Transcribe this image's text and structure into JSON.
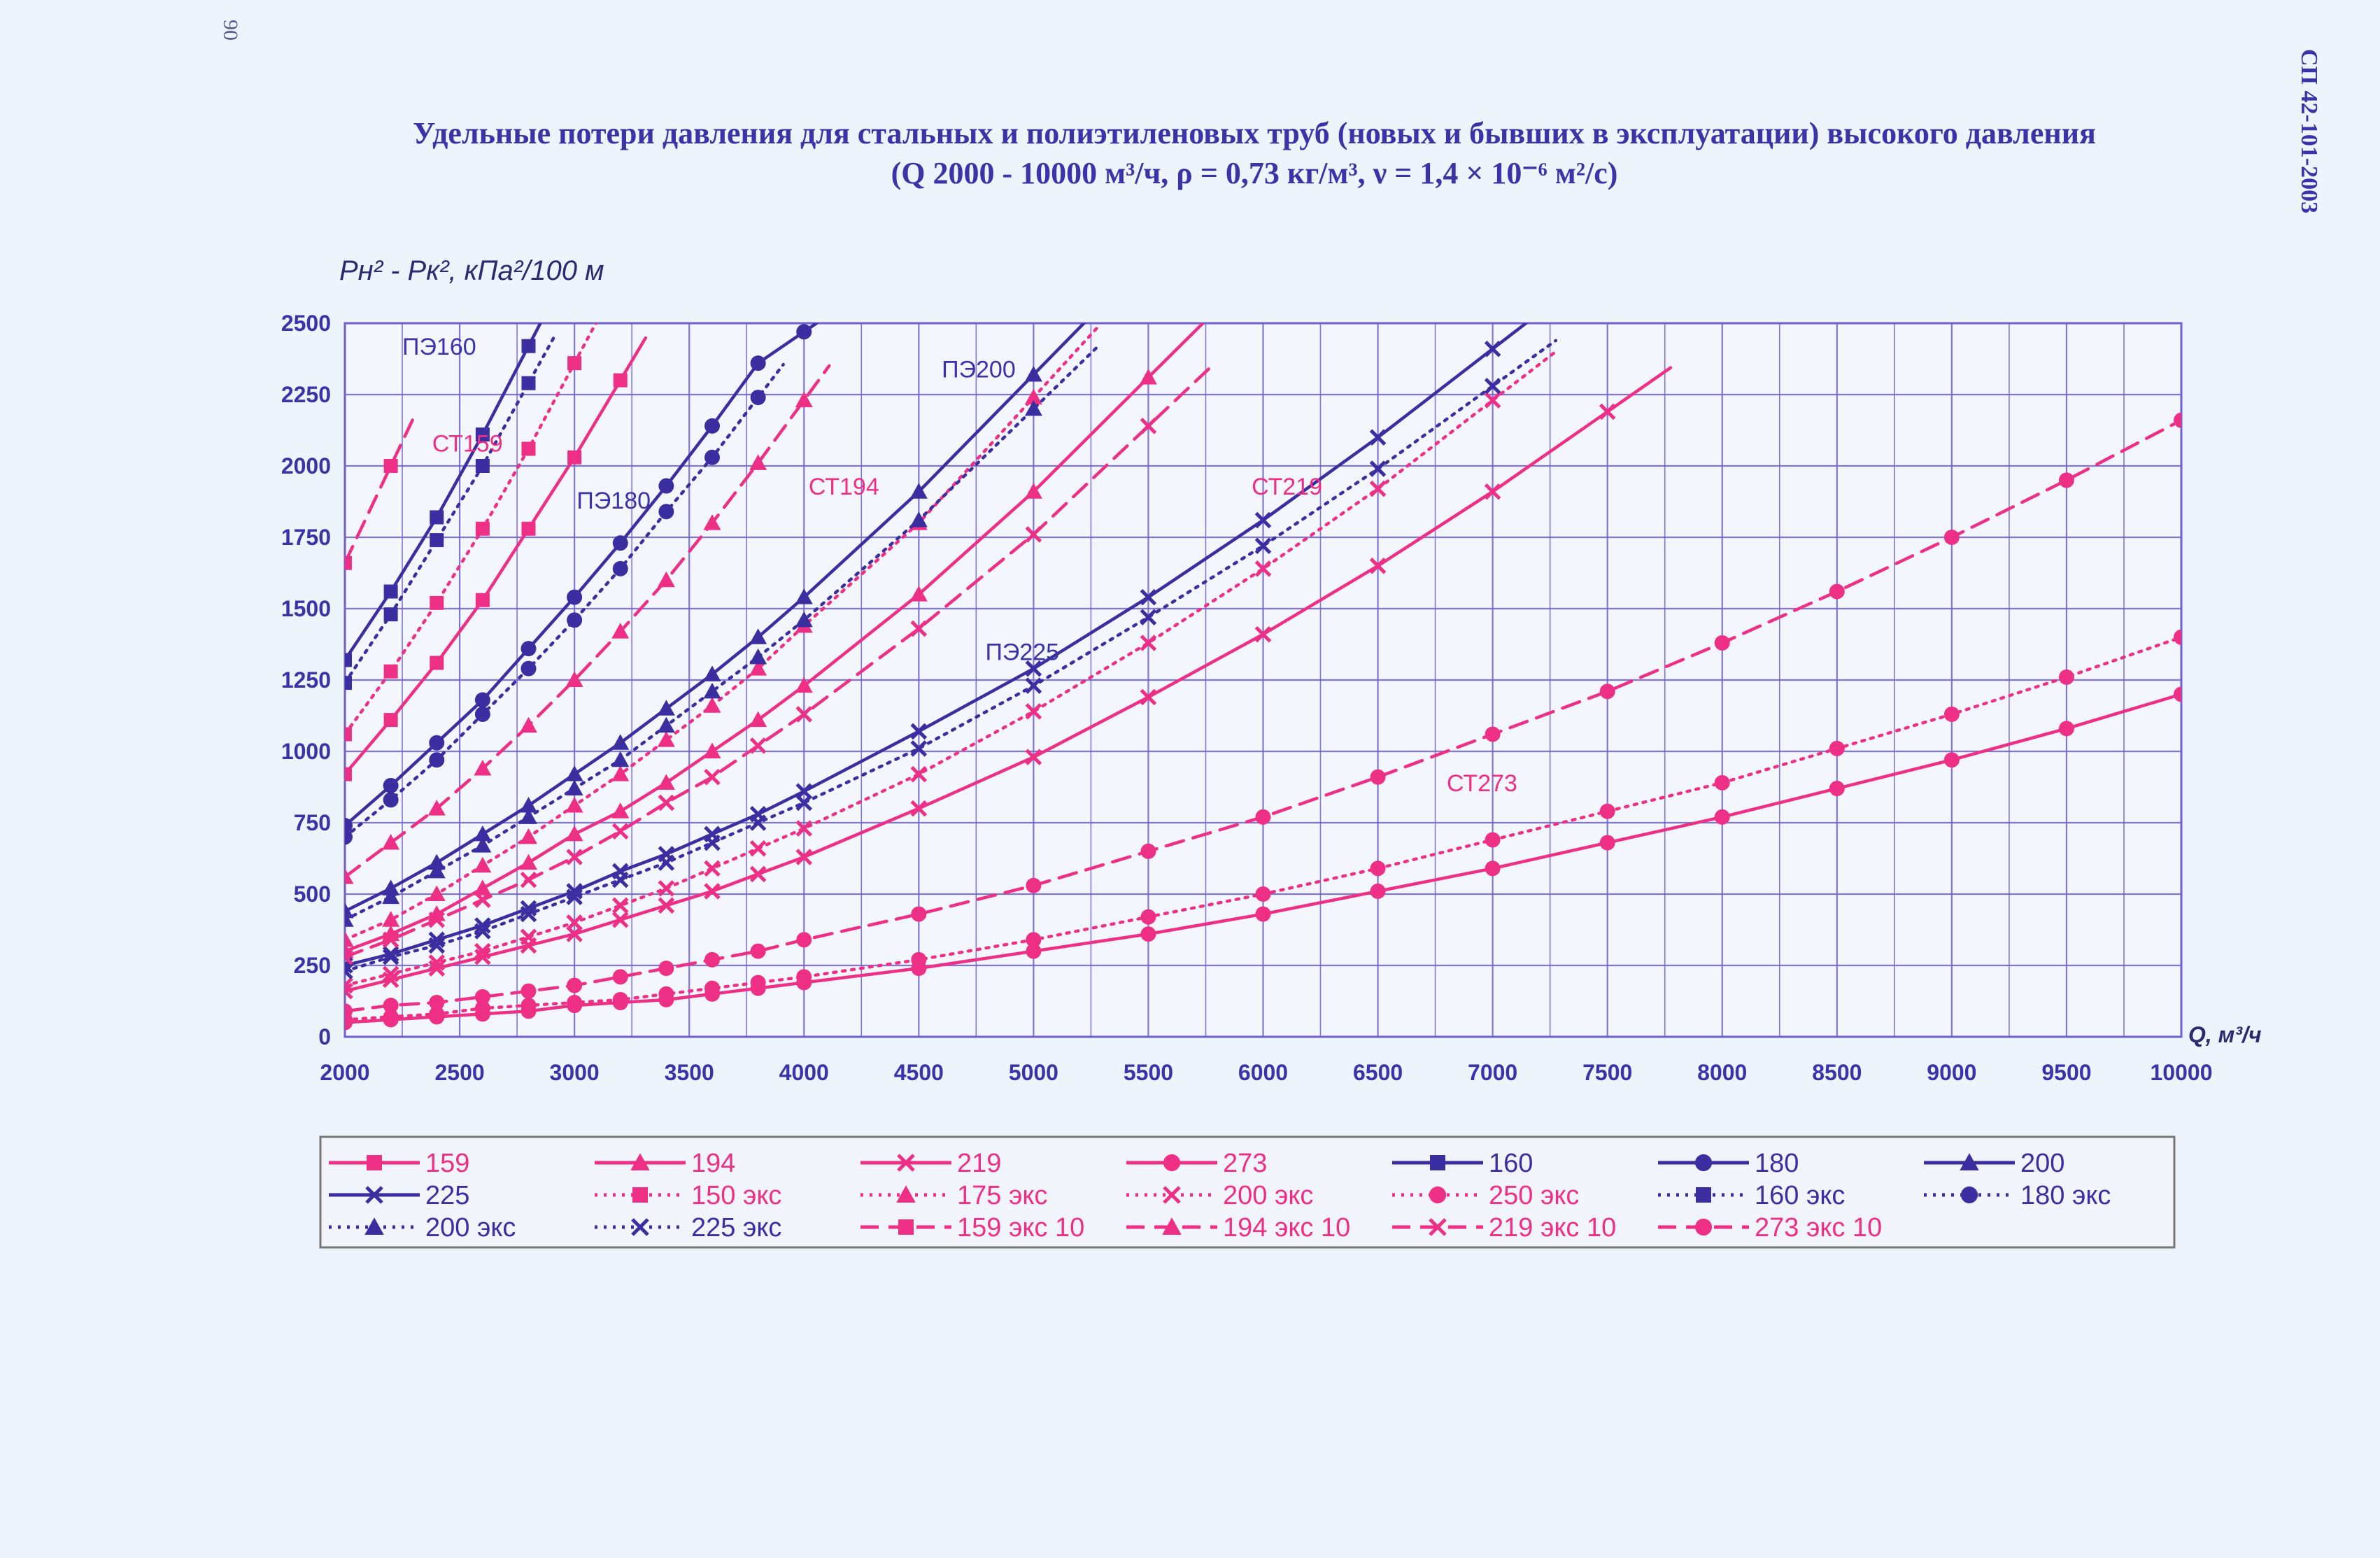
{
  "page": {
    "corner_number": "90",
    "doc_code": "СП 42-101-2003",
    "title_line1": "Удельные потери давления для стальных и полиэтиленовых труб (новых и бывших в эксплуатации) высокого давления",
    "title_line2": "(Q 2000 - 10000 м³/ч, ρ = 0,73 кг/м³, ν = 1,4 × 10⁻⁶ м²/с)"
  },
  "colors": {
    "blue": "#3a2ea0",
    "pink": "#ee2f86",
    "grid": "#6f5fd0",
    "text_blue": "#3b33a8"
  },
  "chart_data": {
    "type": "line",
    "ylabel": "Pн² - Pк², кПа²/100 м",
    "xlabel": "Q, м³/ч",
    "xlim": [
      2000,
      10000
    ],
    "ylim": [
      0,
      2500
    ],
    "x_ticks": [
      2000,
      2500,
      3000,
      3500,
      4000,
      4500,
      5000,
      5500,
      6000,
      6500,
      7000,
      7500,
      8000,
      8500,
      9000,
      9500,
      10000
    ],
    "y_ticks": [
      0,
      250,
      500,
      750,
      1000,
      1250,
      1500,
      1750,
      2000,
      2250,
      2500
    ],
    "grid": true,
    "legend_position": "bottom",
    "annotations": [
      {
        "text": "ПЭ160",
        "x": 2250,
        "y": 2390,
        "color": "#3b33a8"
      },
      {
        "text": "СТ159",
        "x": 2380,
        "y": 2050,
        "color": "#ee2f86"
      },
      {
        "text": "ПЭ180",
        "x": 3010,
        "y": 1850,
        "color": "#3b33a8"
      },
      {
        "text": "СТ194",
        "x": 4020,
        "y": 1900,
        "color": "#ee2f86"
      },
      {
        "text": "ПЭ200",
        "x": 4600,
        "y": 2310,
        "color": "#3b33a8"
      },
      {
        "text": "СТ219",
        "x": 5950,
        "y": 1900,
        "color": "#ee2f86"
      },
      {
        "text": "ПЭ225",
        "x": 4790,
        "y": 1320,
        "color": "#3b33a8"
      },
      {
        "text": "СТ273",
        "x": 6800,
        "y": 860,
        "color": "#ee2f86"
      }
    ],
    "series": [
      {
        "name": "159",
        "color": "#ee2f86",
        "dash": "solid",
        "marker": "square",
        "x": [
          2000,
          2200,
          2400,
          2600,
          2800,
          3000,
          3200
        ],
        "y": [
          920,
          1110,
          1310,
          1530,
          1780,
          2030,
          2300
        ]
      },
      {
        "name": "194",
        "color": "#ee2f86",
        "dash": "solid",
        "marker": "triangle",
        "x": [
          2000,
          2200,
          2400,
          2600,
          2800,
          3000,
          3200,
          3400,
          3600,
          3800,
          4000,
          4500,
          5000,
          5500
        ],
        "y": [
          300,
          360,
          430,
          520,
          610,
          710,
          790,
          890,
          1000,
          1110,
          1230,
          1550,
          1910,
          2310
        ]
      },
      {
        "name": "219",
        "color": "#ee2f86",
        "dash": "solid",
        "marker": "cross",
        "x": [
          2000,
          2200,
          2400,
          2600,
          2800,
          3000,
          3200,
          3400,
          3600,
          3800,
          4000,
          4500,
          5000,
          5500,
          6000,
          6500,
          7000,
          7500
        ],
        "y": [
          160,
          200,
          240,
          280,
          320,
          360,
          410,
          460,
          510,
          570,
          630,
          800,
          980,
          1190,
          1410,
          1650,
          1910,
          2190
        ]
      },
      {
        "name": "273",
        "color": "#ee2f86",
        "dash": "solid",
        "marker": "circle",
        "x": [
          2000,
          2200,
          2400,
          2600,
          2800,
          3000,
          3200,
          3400,
          3600,
          3800,
          4000,
          4500,
          5000,
          5500,
          6000,
          6500,
          7000,
          7500,
          8000,
          8500,
          9000,
          9500,
          10000
        ],
        "y": [
          50,
          60,
          70,
          80,
          90,
          110,
          120,
          130,
          150,
          170,
          190,
          240,
          300,
          360,
          430,
          510,
          590,
          680,
          770,
          870,
          970,
          1080,
          1200
        ]
      },
      {
        "name": "160",
        "color": "#3a2ea0",
        "dash": "solid",
        "marker": "square",
        "x": [
          2000,
          2200,
          2400,
          2600,
          2800
        ],
        "y": [
          1320,
          1560,
          1820,
          2110,
          2420
        ]
      },
      {
        "name": "180",
        "color": "#3a2ea0",
        "dash": "solid",
        "marker": "circle",
        "x": [
          2000,
          2200,
          2400,
          2600,
          2800,
          3000,
          3200,
          3400,
          3600,
          3800,
          4000
        ],
        "y": [
          740,
          880,
          1030,
          1180,
          1360,
          1540,
          1730,
          1930,
          2140,
          2360,
          2470
        ]
      },
      {
        "name": "200",
        "color": "#3a2ea0",
        "dash": "solid",
        "marker": "triangle",
        "x": [
          2000,
          2200,
          2400,
          2600,
          2800,
          3000,
          3200,
          3400,
          3600,
          3800,
          4000,
          4500,
          5000
        ],
        "y": [
          440,
          520,
          610,
          710,
          810,
          920,
          1030,
          1150,
          1270,
          1400,
          1540,
          1910,
          2320
        ]
      },
      {
        "name": "225",
        "color": "#3a2ea0",
        "dash": "solid",
        "marker": "cross",
        "x": [
          2000,
          2200,
          2400,
          2600,
          2800,
          3000,
          3200,
          3400,
          3600,
          3800,
          4000,
          4500,
          5000,
          5500,
          6000,
          6500,
          7000
        ],
        "y": [
          250,
          290,
          340,
          390,
          450,
          510,
          580,
          640,
          710,
          780,
          860,
          1070,
          1290,
          1540,
          1810,
          2100,
          2410
        ]
      },
      {
        "name": "150 экс",
        "color": "#ee2f86",
        "dash": "dotted",
        "marker": "square",
        "x": [
          2000,
          2200,
          2400,
          2600,
          2800,
          3000
        ],
        "y": [
          1060,
          1280,
          1520,
          1780,
          2060,
          2360
        ]
      },
      {
        "name": "175 экс",
        "color": "#ee2f86",
        "dash": "dotted",
        "marker": "triangle",
        "x": [
          2000,
          2200,
          2400,
          2600,
          2800,
          3000,
          3200,
          3400,
          3600,
          3800,
          4000,
          4500,
          5000
        ],
        "y": [
          340,
          410,
          500,
          600,
          700,
          810,
          920,
          1040,
          1160,
          1290,
          1440,
          1800,
          2240
        ]
      },
      {
        "name": "200 экс",
        "color": "#ee2f86",
        "dash": "dotted",
        "marker": "cross",
        "x": [
          2000,
          2200,
          2400,
          2600,
          2800,
          3000,
          3200,
          3400,
          3600,
          3800,
          4000,
          4500,
          5000,
          5500,
          6000,
          6500,
          7000
        ],
        "y": [
          180,
          220,
          260,
          300,
          350,
          400,
          460,
          520,
          590,
          660,
          730,
          920,
          1140,
          1380,
          1640,
          1920,
          2230
        ]
      },
      {
        "name": "250 экс",
        "color": "#ee2f86",
        "dash": "dotted",
        "marker": "circle",
        "x": [
          2000,
          2200,
          2400,
          2600,
          2800,
          3000,
          3200,
          3400,
          3600,
          3800,
          4000,
          4500,
          5000,
          5500,
          6000,
          6500,
          7000,
          7500,
          8000,
          8500,
          9000,
          9500,
          10000
        ],
        "y": [
          60,
          70,
          80,
          100,
          110,
          120,
          130,
          150,
          170,
          190,
          210,
          270,
          340,
          420,
          500,
          590,
          690,
          790,
          890,
          1010,
          1130,
          1260,
          1400
        ]
      },
      {
        "name": "160 экс",
        "color": "#3a2ea0",
        "dash": "dotted",
        "marker": "square",
        "x": [
          2000,
          2200,
          2400,
          2600,
          2800
        ],
        "y": [
          1240,
          1480,
          1740,
          2000,
          2290
        ]
      },
      {
        "name": "180 экс",
        "color": "#3a2ea0",
        "dash": "dotted",
        "marker": "circle",
        "x": [
          2000,
          2200,
          2400,
          2600,
          2800,
          3000,
          3200,
          3400,
          3600,
          3800
        ],
        "y": [
          700,
          830,
          970,
          1130,
          1290,
          1460,
          1640,
          1840,
          2030,
          2240
        ]
      },
      {
        "name": "200 экс",
        "color": "#3a2ea0",
        "dash": "dotted",
        "marker": "triangle",
        "x": [
          2000,
          2200,
          2400,
          2600,
          2800,
          3000,
          3200,
          3400,
          3600,
          3800,
          4000,
          4500,
          5000
        ],
        "y": [
          410,
          490,
          580,
          670,
          770,
          870,
          970,
          1090,
          1210,
          1330,
          1460,
          1810,
          2200
        ]
      },
      {
        "name": "225 экс",
        "color": "#3a2ea0",
        "dash": "dotted",
        "marker": "cross",
        "x": [
          2000,
          2200,
          2400,
          2600,
          2800,
          3000,
          3200,
          3400,
          3600,
          3800,
          4000,
          4500,
          5000,
          5500,
          6000,
          6500,
          7000
        ],
        "y": [
          230,
          280,
          320,
          370,
          430,
          490,
          550,
          610,
          680,
          750,
          820,
          1010,
          1230,
          1470,
          1720,
          1990,
          2280
        ]
      },
      {
        "name": "159 экс 10",
        "color": "#ee2f86",
        "dash": "dashed",
        "marker": "square",
        "x": [
          2000,
          2200
        ],
        "y": [
          1660,
          2000
        ]
      },
      {
        "name": "194 экс 10",
        "color": "#ee2f86",
        "dash": "dashed",
        "marker": "triangle",
        "x": [
          2000,
          2200,
          2400,
          2600,
          2800,
          3000,
          3200,
          3400,
          3600,
          3800,
          4000
        ],
        "y": [
          560,
          680,
          800,
          940,
          1090,
          1250,
          1420,
          1600,
          1800,
          2010,
          2230
        ]
      },
      {
        "name": "219 экс 10",
        "color": "#ee2f86",
        "dash": "dashed",
        "marker": "cross",
        "x": [
          2000,
          2200,
          2400,
          2600,
          2800,
          3000,
          3200,
          3400,
          3600,
          3800,
          4000,
          4500,
          5000,
          5500
        ],
        "y": [
          280,
          340,
          410,
          480,
          550,
          630,
          720,
          820,
          910,
          1020,
          1130,
          1430,
          1760,
          2140
        ]
      },
      {
        "name": "273 экс 10",
        "color": "#ee2f86",
        "dash": "dashed",
        "marker": "circle",
        "x": [
          2000,
          2200,
          2400,
          2600,
          2800,
          3000,
          3200,
          3400,
          3600,
          3800,
          4000,
          4500,
          5000,
          5500,
          6000,
          6500,
          7000,
          7500,
          8000,
          8500,
          9000,
          9500,
          10000
        ],
        "y": [
          90,
          110,
          120,
          140,
          160,
          180,
          210,
          240,
          270,
          300,
          340,
          430,
          530,
          650,
          770,
          910,
          1060,
          1210,
          1380,
          1560,
          1750,
          1950,
          2160
        ]
      }
    ]
  }
}
